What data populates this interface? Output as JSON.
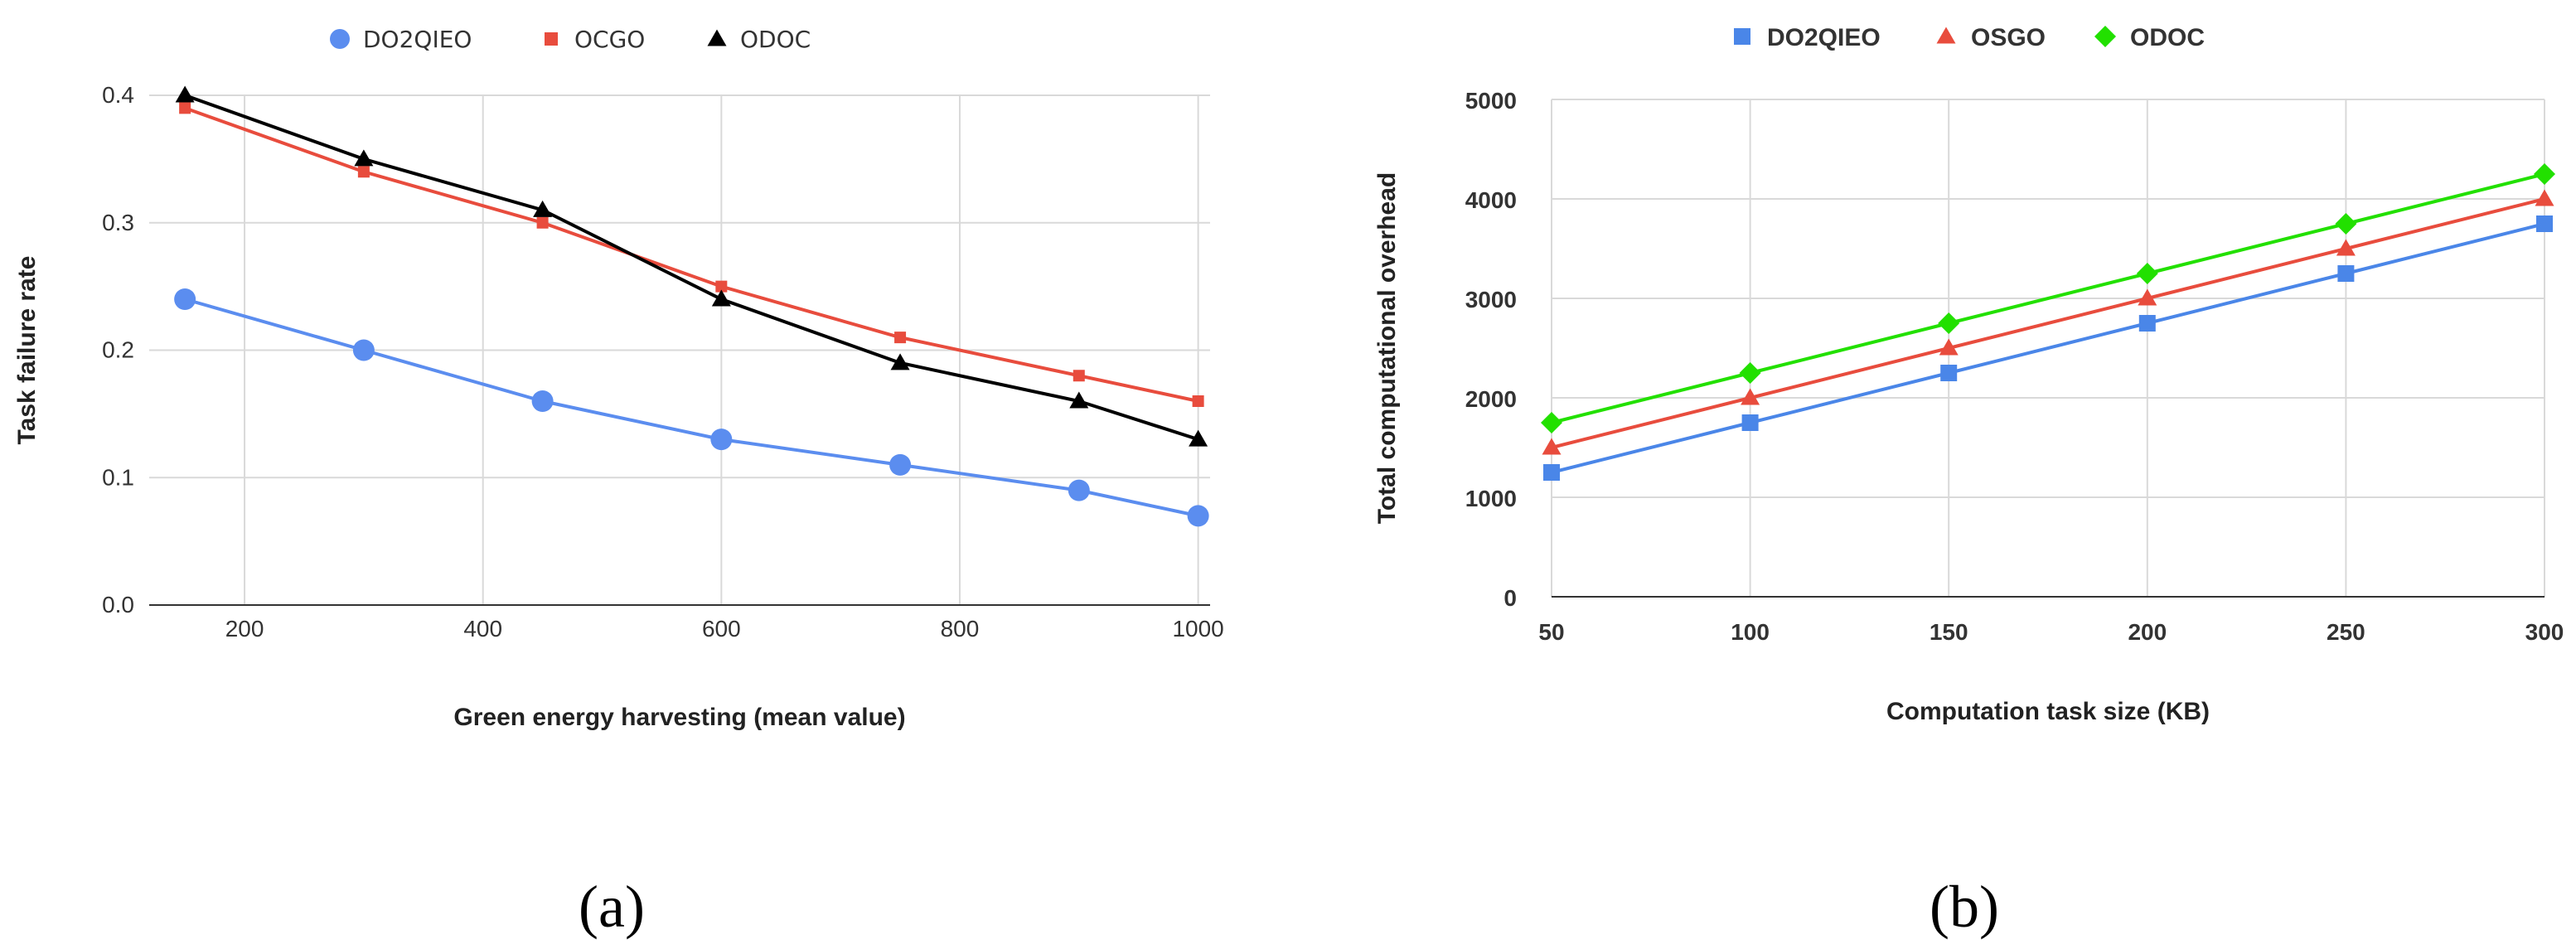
{
  "panels": {
    "a_label": "(a)",
    "b_label": "(b)"
  },
  "chart_data": [
    {
      "id": "a",
      "type": "line",
      "title": "",
      "xlabel": "Green energy harvesting (mean value)",
      "ylabel": "Task failure rate",
      "x": [
        150,
        300,
        450,
        600,
        750,
        900,
        1000
      ],
      "xlim": [
        120,
        1010
      ],
      "ylim": [
        0,
        0.4
      ],
      "xticks": [
        200,
        400,
        600,
        800,
        1000
      ],
      "xtick_labels": [
        "200",
        "400",
        "600",
        "800",
        "1000"
      ],
      "yticks": [
        0,
        0.1,
        0.2,
        0.3,
        0.4
      ],
      "ytick_labels": [
        "0.0",
        "0.1",
        "0.2",
        "0.3",
        "0.4"
      ],
      "grid": true,
      "legend_position": "top",
      "series": [
        {
          "name": "DO2QIEO",
          "color": "#5b8def",
          "marker": "circle",
          "values": [
            0.24,
            0.2,
            0.16,
            0.13,
            0.11,
            0.09,
            0.07
          ]
        },
        {
          "name": "OCGO",
          "color": "#e84c3d",
          "marker": "square",
          "values": [
            0.39,
            0.34,
            0.3,
            0.25,
            0.21,
            0.18,
            0.16
          ]
        },
        {
          "name": "ODOC",
          "color": "#000000",
          "marker": "triangle",
          "values": [
            0.4,
            0.35,
            0.31,
            0.24,
            0.19,
            0.16,
            0.13
          ]
        }
      ]
    },
    {
      "id": "b",
      "type": "line",
      "title": "",
      "xlabel": "Computation task size (KB)",
      "ylabel": "Total computational overhead",
      "categories": [
        "50",
        "100",
        "150",
        "200",
        "250",
        "300"
      ],
      "ylim": [
        0,
        5000
      ],
      "yticks": [
        0,
        1000,
        2000,
        3000,
        4000,
        5000
      ],
      "ytick_labels": [
        "0",
        "1000",
        "2000",
        "3000",
        "4000",
        "5000"
      ],
      "grid": true,
      "legend_position": "top",
      "series": [
        {
          "name": "DO2QIEO",
          "color": "#4a86e8",
          "marker": "square",
          "values": [
            1250,
            1750,
            2250,
            2750,
            3250,
            3750
          ]
        },
        {
          "name": "OSGO",
          "color": "#e84c3d",
          "marker": "triangle",
          "values": [
            1500,
            2000,
            2500,
            3000,
            3500,
            4000
          ]
        },
        {
          "name": "ODOC",
          "color": "#22e000",
          "marker": "diamond",
          "values": [
            1750,
            2250,
            2750,
            3250,
            3750,
            4250
          ]
        }
      ]
    }
  ]
}
